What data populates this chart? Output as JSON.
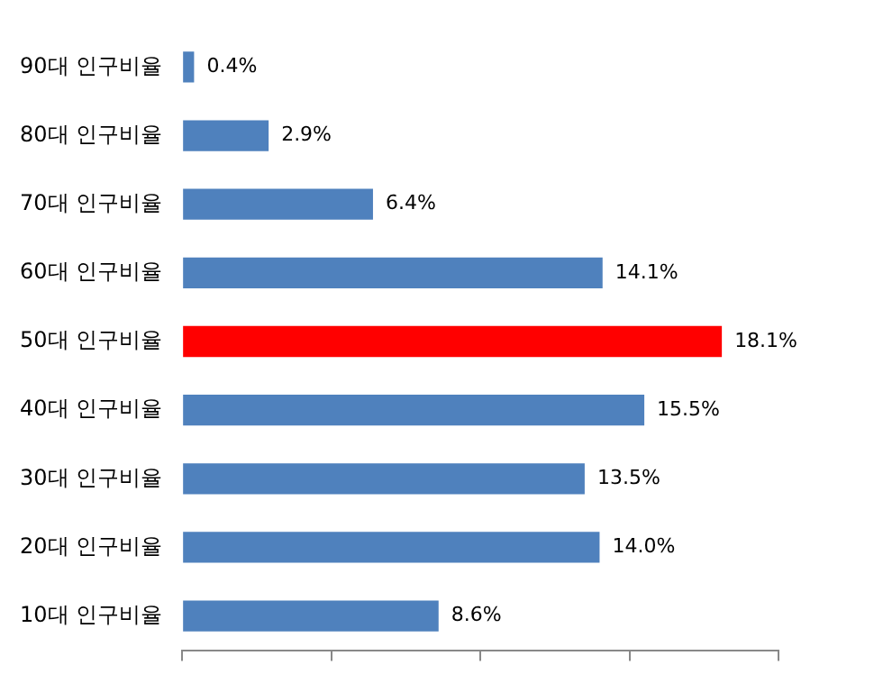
{
  "chart_data": {
    "type": "bar",
    "orientation": "horizontal",
    "categories": [
      "90대 인구비율",
      "80대 인구비율",
      "70대 인구비율",
      "60대 인구비율",
      "50대 인구비율",
      "40대 인구비율",
      "30대 인구비율",
      "20대 인구비율",
      "10대 인구비율"
    ],
    "values": [
      0.4,
      2.9,
      6.4,
      14.1,
      18.1,
      15.5,
      13.5,
      14.0,
      8.6
    ],
    "colors": [
      "#4f81bd",
      "#4f81bd",
      "#4f81bd",
      "#4f81bd",
      "#ff0000",
      "#4f81bd",
      "#4f81bd",
      "#4f81bd",
      "#4f81bd"
    ],
    "value_labels": [
      "0.4%",
      "2.9%",
      "6.4%",
      "14.1%",
      "18.1%",
      "15.5%",
      "13.5%",
      "14.0%",
      "8.6%"
    ],
    "tick_labels": "y"
  }
}
